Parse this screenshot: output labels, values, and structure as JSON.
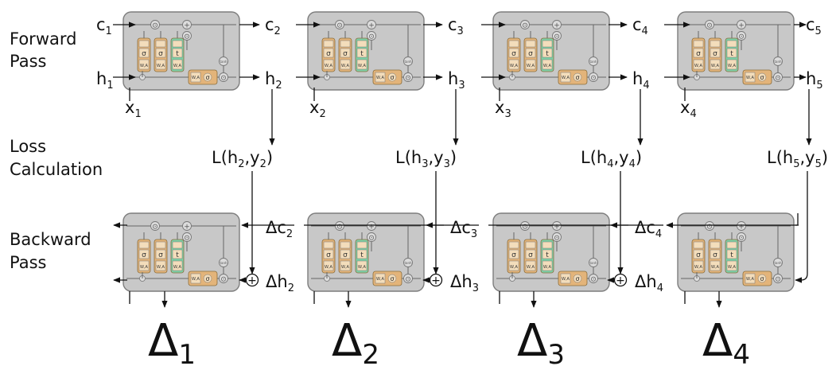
{
  "rows": {
    "forward": [
      "Forward",
      "Pass"
    ],
    "loss": [
      "Loss",
      "Calculation"
    ],
    "backward": [
      "Backward",
      "Pass"
    ]
  },
  "cell_gate_labels": {
    "sigma": "σ",
    "tanh": "tanh",
    "weights": "W,A",
    "mult": "⊙",
    "add": "+"
  },
  "forward": {
    "c_states": [
      {
        "base": "c",
        "sub": "1"
      },
      {
        "base": "c",
        "sub": "2"
      },
      {
        "base": "c",
        "sub": "3"
      },
      {
        "base": "c",
        "sub": "4"
      },
      {
        "base": "c",
        "sub": "5"
      }
    ],
    "h_states": [
      {
        "base": "h",
        "sub": "1"
      },
      {
        "base": "h",
        "sub": "2"
      },
      {
        "base": "h",
        "sub": "3"
      },
      {
        "base": "h",
        "sub": "4"
      },
      {
        "base": "h",
        "sub": "5"
      }
    ],
    "inputs": [
      {
        "base": "x",
        "sub": "1"
      },
      {
        "base": "x",
        "sub": "2"
      },
      {
        "base": "x",
        "sub": "3"
      },
      {
        "base": "x",
        "sub": "4"
      }
    ]
  },
  "loss": [
    {
      "h": "2",
      "y": "2"
    },
    {
      "h": "3",
      "y": "3"
    },
    {
      "h": "4",
      "y": "4"
    },
    {
      "h": "5",
      "y": "5"
    }
  ],
  "backward": {
    "dc": [
      {
        "base": "Δc",
        "sub": "2"
      },
      {
        "base": "Δc",
        "sub": "3"
      },
      {
        "base": "Δc",
        "sub": "4"
      }
    ],
    "dh": [
      {
        "base": "Δh",
        "sub": "2"
      },
      {
        "base": "Δh",
        "sub": "3"
      },
      {
        "base": "Δh",
        "sub": "4"
      }
    ],
    "deltas": [
      {
        "base": "Δ",
        "sub": "1"
      },
      {
        "base": "Δ",
        "sub": "2"
      },
      {
        "base": "Δ",
        "sub": "3"
      },
      {
        "base": "Δ",
        "sub": "4"
      }
    ]
  },
  "colors": {
    "cell_fill": "#c8c8c8",
    "cell_stroke": "#7d7d7d",
    "gate_orange": "#e3b47a",
    "gate_green": "#7fd0a6",
    "line": "#111111",
    "inner_line": "#666666"
  }
}
